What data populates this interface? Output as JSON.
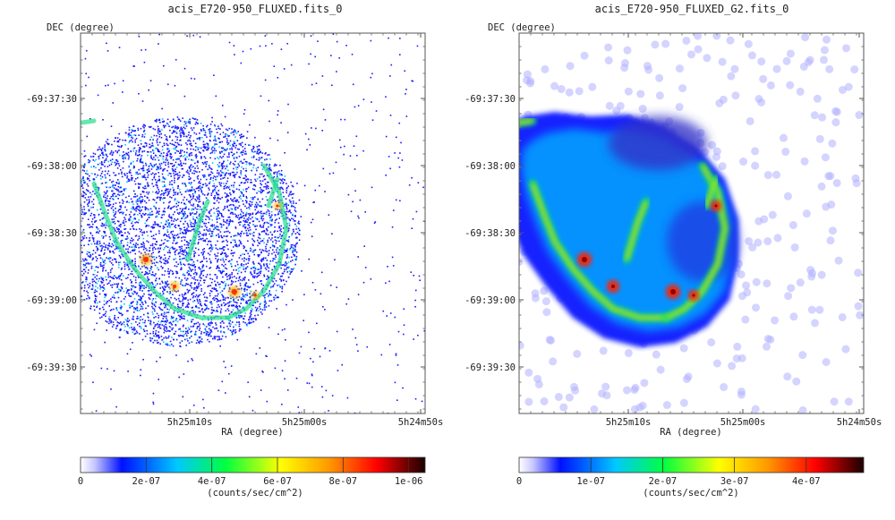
{
  "panels": [
    {
      "title": "acis_E720-950_FLUXED.fits_0",
      "ylabel": "DEC (degree)",
      "xlabel": "RA (degree)",
      "yticks": [
        "-69:37:30",
        "-69:38:00",
        "-69:38:30",
        "-69:39:00",
        "-69:39:30"
      ],
      "xticks": [
        "5h25m10s",
        "5h25m00s",
        "5h24m50s"
      ],
      "colorbar": {
        "ticks": [
          "0",
          "2e-07",
          "4e-07",
          "6e-07",
          "8e-07",
          "1e-06"
        ],
        "max": 1.05e-06,
        "label": "(counts/sec/cm^2)"
      },
      "style": "raw"
    },
    {
      "title": "acis_E720-950_FLUXED_G2.fits_0",
      "ylabel": "DEC (degree)",
      "xlabel": "RA (degree)",
      "yticks": [
        "-69:37:30",
        "-69:38:00",
        "-69:38:30",
        "-69:39:00",
        "-69:39:30"
      ],
      "xticks": [
        "5h25m10s",
        "5h25m00s",
        "5h24m50s"
      ],
      "colorbar": {
        "ticks": [
          "0",
          "1e-07",
          "2e-07",
          "3e-07",
          "4e-07"
        ],
        "max": 4.8e-07,
        "label": "(counts/sec/cm^2)"
      },
      "style": "smooth"
    }
  ],
  "chart_data": [
    {
      "type": "heatmap",
      "title": "acis_E720-950_FLUXED.fits_0",
      "xlabel": "RA (degree)",
      "ylabel": "DEC (degree)",
      "colormap": "rainbow",
      "color_range": [
        0,
        1.05e-06
      ],
      "colorbar_label": "(counts/sec/cm^2)"
    },
    {
      "type": "heatmap",
      "title": "acis_E720-950_FLUXED_G2.fits_0",
      "xlabel": "RA (degree)",
      "ylabel": "DEC (degree)",
      "colormap": "rainbow",
      "color_range": [
        0,
        4.8e-07
      ],
      "colorbar_label": "(counts/sec/cm^2)"
    }
  ]
}
